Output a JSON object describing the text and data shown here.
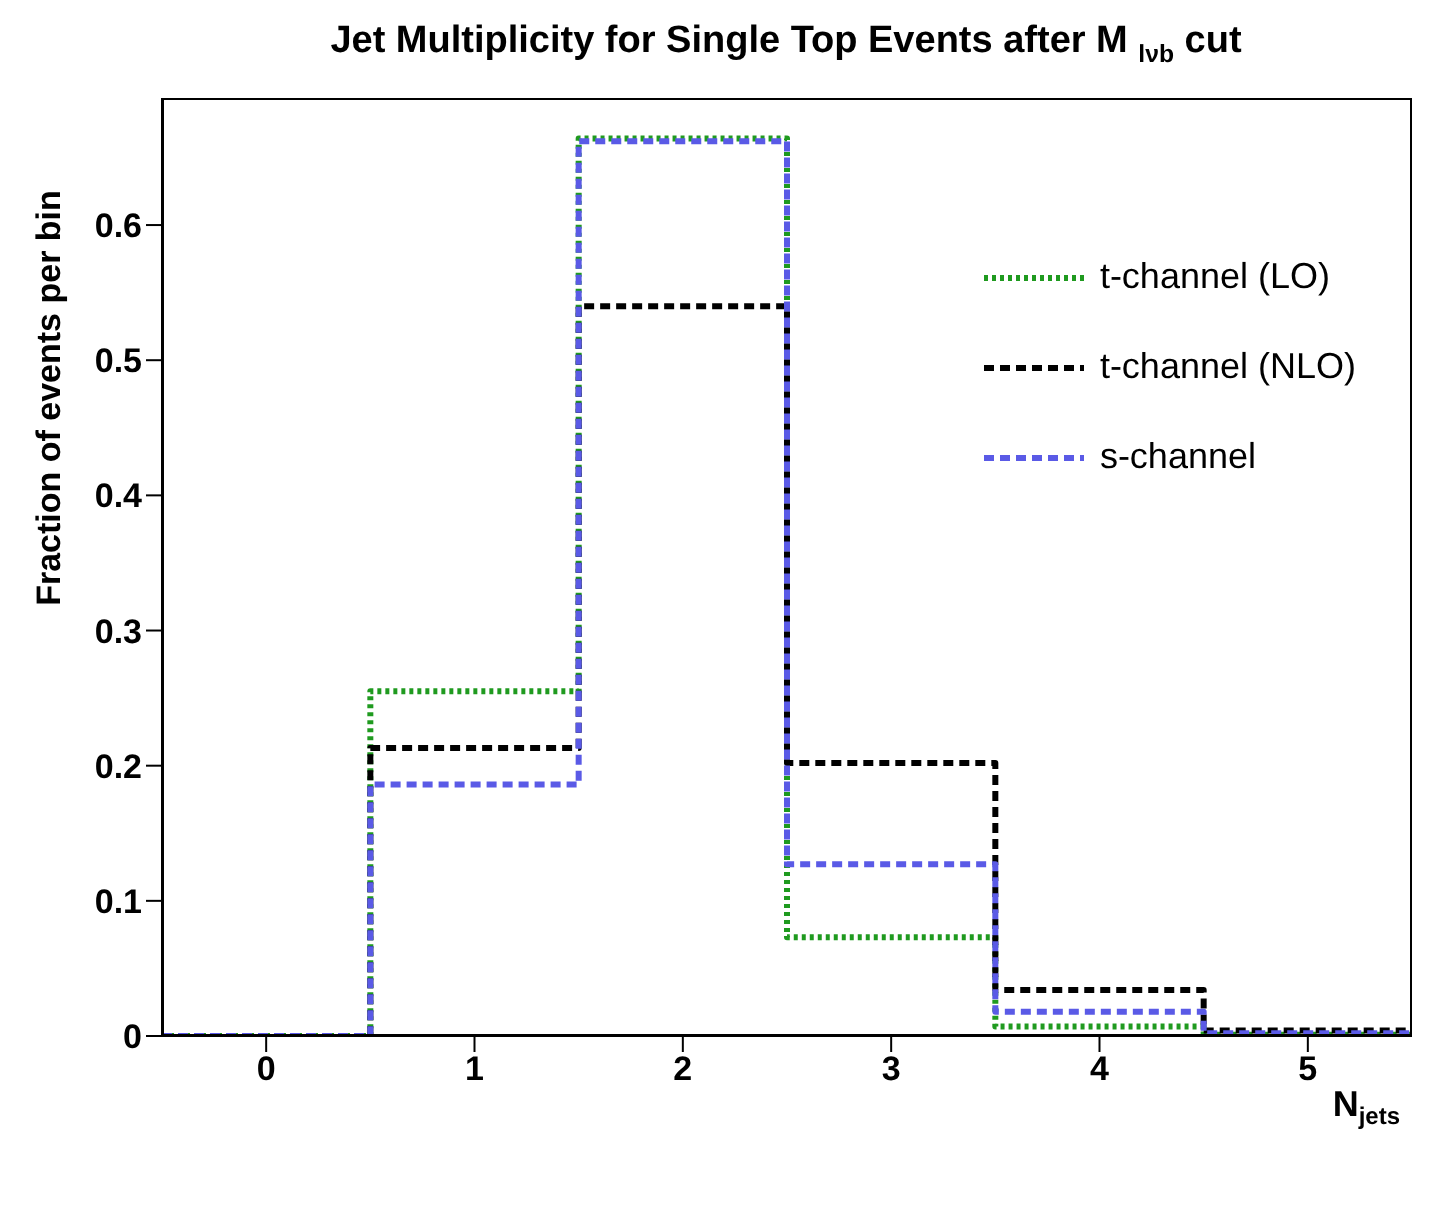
{
  "chart_data": {
    "type": "histogram",
    "title": "Jet Multiplicity for Single Top Events after M $_{lνb}$ cut",
    "xlabel": "N$_{jets}$",
    "ylabel": "Fraction of events per bin",
    "bins": [
      -0.5,
      0.5,
      1.5,
      2.5,
      3.5,
      4.5,
      5.5
    ],
    "series": [
      {
        "name": "t-channel (LO)",
        "color": "#1f9a1f",
        "line_style": "dotted",
        "values": [
          0,
          0.255,
          0.664,
          0.073,
          0.007,
          0.001
        ]
      },
      {
        "name": "t-channel (NLO)",
        "color": "#000000",
        "line_style": "dashed",
        "values": [
          0,
          0.213,
          0.54,
          0.202,
          0.034,
          0.004
        ]
      },
      {
        "name": "s-channel",
        "color": "#5a5ae6",
        "line_style": "dashed",
        "values": [
          0,
          0.186,
          0.662,
          0.127,
          0.018,
          0.002
        ]
      }
    ],
    "xlim": [
      -0.5,
      5.5
    ],
    "xticks": [
      0,
      1,
      2,
      3,
      4,
      5
    ],
    "ylim": [
      0,
      0.694
    ],
    "yticks": [
      0,
      0.1,
      0.2,
      0.3,
      0.4,
      0.5,
      0.6
    ],
    "grid": false,
    "legend": "top right"
  }
}
